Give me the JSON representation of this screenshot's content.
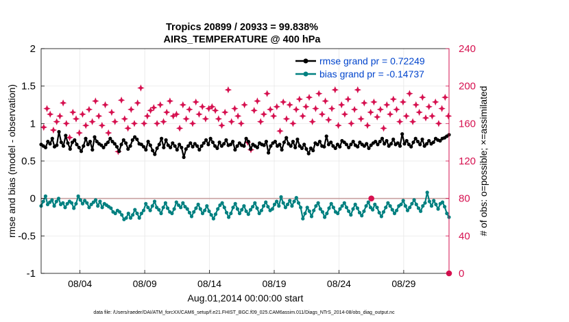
{
  "chart_data": {
    "type": "line",
    "title": "Tropics 20899 / 20933 = 99.838%",
    "subtitle": "AIRS_TEMPERATURE @ 400 hPa",
    "xlabel": "Aug.01,2014 00:00:00 start",
    "ylabel_left": "rmse and bias (model - observation)",
    "ylabel_right": "# of obs: o=possible; ×=assimilated",
    "footer": "data file: /Users/raeder/DAI/ATM_forcXX/CAM6_setup/f.e21.FHIST_BGC.f09_025.CAM6assim.011/Diags_NTrS_2014-08/obs_diag_output.nc",
    "x_range_days": [
      0,
      31.5
    ],
    "x_ticks": [
      {
        "day": 3,
        "label": "08/04"
      },
      {
        "day": 8,
        "label": "08/09"
      },
      {
        "day": 13,
        "label": "08/14"
      },
      {
        "day": 18,
        "label": "08/19"
      },
      {
        "day": 23,
        "label": "08/24"
      },
      {
        "day": 28,
        "label": "08/29"
      }
    ],
    "ylim_left": [
      -1,
      2
    ],
    "y_ticks_left": [
      "-1",
      "-0.5",
      "0",
      "0.5",
      "1",
      "1.5",
      "2"
    ],
    "ylim_right": [
      0,
      240
    ],
    "y_ticks_right": [
      "0",
      "40",
      "80",
      "120",
      "160",
      "200",
      "240"
    ],
    "grid": true,
    "zero_line": true,
    "legend_position": "top-right",
    "legend": [
      "rmse grand pr = 0.72249",
      "bias grand pr = -0.14737"
    ],
    "colors": {
      "rmse": "#000000",
      "bias": "#008080",
      "obs": "#d6104f",
      "legend_text": "#0044cc",
      "zero_line": "#c8a0a0"
    },
    "rmse": [
      0.72,
      0.7,
      0.68,
      0.76,
      0.73,
      0.8,
      0.69,
      0.71,
      0.89,
      0.75,
      0.7,
      0.84,
      0.74,
      0.66,
      0.75,
      0.78,
      0.72,
      0.68,
      0.63,
      0.7,
      0.8,
      0.72,
      0.76,
      0.65,
      0.82,
      0.76,
      0.73,
      0.71,
      0.68,
      0.72,
      0.75,
      0.8,
      0.76,
      0.73,
      0.69,
      0.63,
      0.72,
      0.78,
      0.74,
      0.66,
      0.7,
      0.78,
      0.82,
      0.79,
      0.73,
      0.72,
      0.69,
      0.65,
      0.76,
      0.71,
      0.64,
      0.59,
      0.67,
      0.72,
      0.8,
      0.68,
      0.78,
      0.71,
      0.68,
      0.74,
      0.7,
      0.65,
      0.72,
      0.68,
      0.55,
      0.66,
      0.7,
      0.74,
      0.69,
      0.73,
      0.7,
      0.65,
      0.7,
      0.74,
      0.78,
      0.72,
      0.8,
      0.75,
      0.7,
      0.67,
      0.75,
      0.7,
      0.73,
      0.78,
      0.71,
      0.72,
      0.76,
      0.65,
      0.7,
      0.74,
      0.71,
      0.7,
      0.8,
      0.76,
      0.66,
      0.72,
      0.7,
      0.68,
      0.74,
      0.72,
      0.71,
      0.76,
      0.61,
      0.7,
      0.74,
      0.76,
      0.7,
      0.72,
      0.65,
      0.75,
      0.81,
      0.73,
      0.7,
      0.76,
      0.68,
      0.79,
      0.7,
      0.67,
      0.72,
      0.66,
      0.6,
      0.67,
      0.64,
      0.74,
      0.72,
      0.76,
      0.7,
      0.69,
      0.83,
      0.72,
      0.75,
      0.7,
      0.67,
      0.72,
      0.69,
      0.77,
      0.75,
      0.72,
      0.68,
      0.72,
      0.76,
      0.71,
      0.69,
      0.75,
      0.72,
      0.7,
      0.73,
      0.67,
      0.71,
      0.74,
      0.76,
      0.72,
      0.76,
      0.8,
      0.73,
      0.77,
      0.7,
      0.73,
      0.79,
      0.72,
      0.74,
      0.7,
      0.86,
      0.73,
      0.77,
      0.72,
      0.69,
      0.75,
      0.8,
      0.76,
      0.72,
      0.79,
      0.7,
      0.73,
      0.77,
      0.73,
      0.75,
      0.8,
      0.78,
      0.77,
      0.8,
      0.81,
      0.83,
      0.85
    ],
    "bias": [
      -0.1,
      -0.04,
      0.03,
      -0.08,
      -0.05,
      -0.02,
      -0.1,
      -0.04,
      0.0,
      -0.08,
      -0.06,
      -0.12,
      -0.07,
      -0.04,
      -0.06,
      -0.13,
      -0.07,
      0.03,
      -0.02,
      -0.07,
      -0.03,
      -0.06,
      -0.12,
      -0.08,
      -0.05,
      -0.02,
      -0.1,
      -0.04,
      -0.12,
      -0.07,
      -0.09,
      -0.11,
      -0.13,
      -0.18,
      -0.2,
      -0.16,
      -0.18,
      -0.22,
      -0.28,
      -0.26,
      -0.2,
      -0.26,
      -0.22,
      -0.15,
      -0.2,
      -0.26,
      -0.2,
      -0.16,
      -0.07,
      -0.12,
      -0.16,
      -0.1,
      -0.04,
      -0.12,
      -0.15,
      -0.2,
      -0.12,
      -0.06,
      -0.13,
      -0.18,
      -0.2,
      -0.14,
      -0.05,
      -0.09,
      -0.12,
      -0.06,
      -0.11,
      -0.14,
      -0.19,
      -0.24,
      -0.18,
      -0.13,
      -0.08,
      -0.14,
      -0.2,
      -0.16,
      -0.1,
      -0.17,
      -0.22,
      -0.27,
      -0.21,
      -0.14,
      -0.09,
      -0.06,
      -0.12,
      -0.19,
      -0.25,
      -0.2,
      -0.12,
      -0.07,
      -0.14,
      -0.2,
      -0.15,
      -0.1,
      -0.17,
      -0.21,
      -0.15,
      -0.11,
      -0.06,
      -0.13,
      -0.2,
      -0.16,
      -0.1,
      -0.05,
      -0.11,
      -0.16,
      -0.14,
      -0.08,
      -0.04,
      -0.1,
      0.02,
      -0.06,
      -0.12,
      -0.08,
      -0.03,
      -0.1,
      -0.04,
      0.01,
      -0.06,
      -0.12,
      -0.27,
      -0.2,
      -0.12,
      -0.17,
      -0.24,
      -0.16,
      -0.1,
      -0.06,
      -0.14,
      -0.18,
      -0.25,
      -0.2,
      -0.13,
      -0.07,
      -0.12,
      -0.18,
      -0.2,
      -0.14,
      -0.1,
      -0.06,
      -0.12,
      -0.17,
      -0.22,
      -0.14,
      -0.08,
      -0.13,
      -0.19,
      -0.23,
      -0.17,
      -0.1,
      -0.05,
      -0.12,
      -0.15,
      -0.08,
      -0.12,
      -0.19,
      -0.24,
      -0.18,
      -0.12,
      -0.06,
      -0.1,
      -0.15,
      -0.2,
      -0.16,
      -0.1,
      -0.08,
      -0.03,
      -0.1,
      -0.16,
      -0.12,
      -0.07,
      -0.02,
      -0.08,
      -0.13,
      -0.17,
      -0.1,
      -0.06,
      0.08,
      -0.04,
      -0.1,
      -0.03,
      -0.08,
      -0.14,
      -0.07,
      -0.05,
      -0.11,
      -0.2,
      -0.25
    ],
    "obs_assimilated": [
      {
        "t": 0.2,
        "n": 156
      },
      {
        "t": 0.45,
        "n": 176
      },
      {
        "t": 0.7,
        "n": 170
      },
      {
        "t": 0.95,
        "n": 153
      },
      {
        "t": 1.2,
        "n": 162
      },
      {
        "t": 1.45,
        "n": 168
      },
      {
        "t": 1.7,
        "n": 182
      },
      {
        "t": 1.95,
        "n": 160
      },
      {
        "t": 2.2,
        "n": 145
      },
      {
        "t": 2.45,
        "n": 172
      },
      {
        "t": 2.7,
        "n": 165
      },
      {
        "t": 2.95,
        "n": 150
      },
      {
        "t": 3.2,
        "n": 170
      },
      {
        "t": 3.45,
        "n": 158
      },
      {
        "t": 3.7,
        "n": 175
      },
      {
        "t": 3.95,
        "n": 162
      },
      {
        "t": 4.2,
        "n": 184
      },
      {
        "t": 4.45,
        "n": 168
      },
      {
        "t": 4.7,
        "n": 158
      },
      {
        "t": 4.95,
        "n": 180
      },
      {
        "t": 5.2,
        "n": 150
      },
      {
        "t": 5.45,
        "n": 172
      },
      {
        "t": 5.7,
        "n": 162
      },
      {
        "t": 5.95,
        "n": 130
      },
      {
        "t": 6.2,
        "n": 185
      },
      {
        "t": 6.45,
        "n": 165
      },
      {
        "t": 6.7,
        "n": 155
      },
      {
        "t": 6.95,
        "n": 175
      },
      {
        "t": 7.2,
        "n": 160
      },
      {
        "t": 7.45,
        "n": 182
      },
      {
        "t": 7.7,
        "n": 198
      },
      {
        "t": 7.95,
        "n": 160
      },
      {
        "t": 8.2,
        "n": 168
      },
      {
        "t": 8.45,
        "n": 174
      },
      {
        "t": 8.7,
        "n": 177
      },
      {
        "t": 8.95,
        "n": 160
      },
      {
        "t": 9.2,
        "n": 180
      },
      {
        "t": 9.45,
        "n": 162
      },
      {
        "t": 9.7,
        "n": 172
      },
      {
        "t": 9.95,
        "n": 184
      },
      {
        "t": 10.2,
        "n": 168
      },
      {
        "t": 10.45,
        "n": 170
      },
      {
        "t": 10.7,
        "n": 155
      },
      {
        "t": 10.95,
        "n": 180
      },
      {
        "t": 11.2,
        "n": 165
      },
      {
        "t": 11.45,
        "n": 175
      },
      {
        "t": 11.7,
        "n": 160
      },
      {
        "t": 11.95,
        "n": 183
      },
      {
        "t": 12.2,
        "n": 170
      },
      {
        "t": 12.45,
        "n": 178
      },
      {
        "t": 12.7,
        "n": 165
      },
      {
        "t": 12.95,
        "n": 176
      },
      {
        "t": 13.2,
        "n": 178
      },
      {
        "t": 13.45,
        "n": 174
      },
      {
        "t": 13.7,
        "n": 165
      },
      {
        "t": 13.95,
        "n": 158
      },
      {
        "t": 14.2,
        "n": 172
      },
      {
        "t": 14.45,
        "n": 196
      },
      {
        "t": 14.7,
        "n": 162
      },
      {
        "t": 14.95,
        "n": 176
      },
      {
        "t": 15.2,
        "n": 168
      },
      {
        "t": 15.45,
        "n": 160
      },
      {
        "t": 15.7,
        "n": 180
      },
      {
        "t": 15.95,
        "n": 140
      },
      {
        "t": 16.2,
        "n": 132
      },
      {
        "t": 16.45,
        "n": 174
      },
      {
        "t": 16.7,
        "n": 184
      },
      {
        "t": 16.95,
        "n": 162
      },
      {
        "t": 17.2,
        "n": 170
      },
      {
        "t": 17.45,
        "n": 192
      },
      {
        "t": 17.7,
        "n": 175
      },
      {
        "t": 17.95,
        "n": 168
      },
      {
        "t": 18.2,
        "n": 178
      },
      {
        "t": 18.45,
        "n": 152
      },
      {
        "t": 18.7,
        "n": 183
      },
      {
        "t": 18.95,
        "n": 165
      },
      {
        "t": 19.2,
        "n": 180
      },
      {
        "t": 19.45,
        "n": 160
      },
      {
        "t": 19.7,
        "n": 175
      },
      {
        "t": 19.95,
        "n": 186
      },
      {
        "t": 20.2,
        "n": 168
      },
      {
        "t": 20.45,
        "n": 178
      },
      {
        "t": 20.7,
        "n": 188
      },
      {
        "t": 20.95,
        "n": 162
      },
      {
        "t": 21.2,
        "n": 176
      },
      {
        "t": 21.45,
        "n": 192
      },
      {
        "t": 21.7,
        "n": 170
      },
      {
        "t": 21.95,
        "n": 184
      },
      {
        "t": 22.2,
        "n": 164
      },
      {
        "t": 22.45,
        "n": 176
      },
      {
        "t": 22.7,
        "n": 196
      },
      {
        "t": 22.95,
        "n": 158
      },
      {
        "t": 23.2,
        "n": 180
      },
      {
        "t": 23.45,
        "n": 170
      },
      {
        "t": 23.7,
        "n": 186
      },
      {
        "t": 23.95,
        "n": 160
      },
      {
        "t": 24.2,
        "n": 175
      },
      {
        "t": 24.45,
        "n": 196
      },
      {
        "t": 24.7,
        "n": 165
      },
      {
        "t": 24.95,
        "n": 182
      },
      {
        "t": 25.2,
        "n": 158
      },
      {
        "t": 25.45,
        "n": 172
      },
      {
        "t": 25.7,
        "n": 183
      },
      {
        "t": 25.95,
        "n": 167
      },
      {
        "t": 26.2,
        "n": 175
      },
      {
        "t": 26.45,
        "n": 155
      },
      {
        "t": 26.7,
        "n": 180
      },
      {
        "t": 26.95,
        "n": 170
      },
      {
        "t": 27.2,
        "n": 186
      },
      {
        "t": 27.45,
        "n": 175
      },
      {
        "t": 27.7,
        "n": 162
      },
      {
        "t": 27.95,
        "n": 183
      },
      {
        "t": 28.2,
        "n": 168
      },
      {
        "t": 28.45,
        "n": 192
      },
      {
        "t": 28.7,
        "n": 162
      },
      {
        "t": 28.95,
        "n": 180
      },
      {
        "t": 29.2,
        "n": 172
      },
      {
        "t": 29.45,
        "n": 188
      },
      {
        "t": 29.7,
        "n": 166
      },
      {
        "t": 29.95,
        "n": 178
      },
      {
        "t": 30.2,
        "n": 168
      },
      {
        "t": 30.45,
        "n": 183
      },
      {
        "t": 30.7,
        "n": 160
      },
      {
        "t": 30.95,
        "n": 176
      },
      {
        "t": 31.2,
        "n": 188
      },
      {
        "t": 31.45,
        "n": 168
      }
    ],
    "obs_possible": [
      {
        "t": 31.5,
        "n": 0
      },
      {
        "t": 25.5,
        "n": 80
      }
    ]
  }
}
